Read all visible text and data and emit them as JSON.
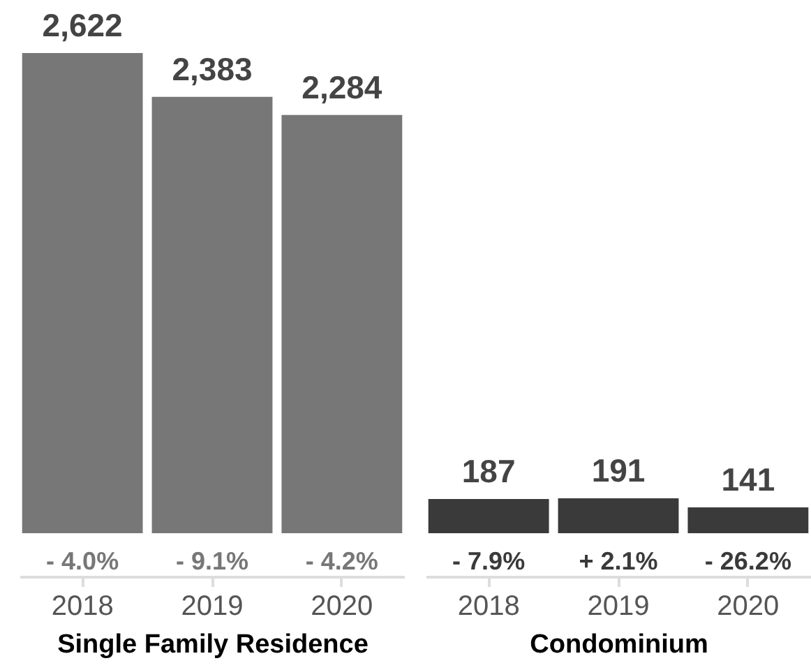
{
  "chart_data": [
    {
      "type": "bar",
      "categories": [
        "2018",
        "2019",
        "2020"
      ],
      "values": [
        2622,
        2383,
        2284
      ],
      "color": "#777777",
      "value_labels": [
        "2,622",
        "2,383",
        "2,284"
      ],
      "xlabel": "Single Family Residence",
      "annotations": [
        "- 4.0%",
        "- 9.1%",
        "- 4.2%"
      ]
    },
    {
      "type": "bar",
      "categories": [
        "2018",
        "2019",
        "2020"
      ],
      "values": [
        187,
        191,
        141
      ],
      "color": "#3a3a3a",
      "value_labels": [
        "187",
        "191",
        "141"
      ],
      "xlabel": "Condominium",
      "annotations": [
        "- 7.9%",
        "+ 2.1%",
        "- 26.2%"
      ]
    }
  ]
}
